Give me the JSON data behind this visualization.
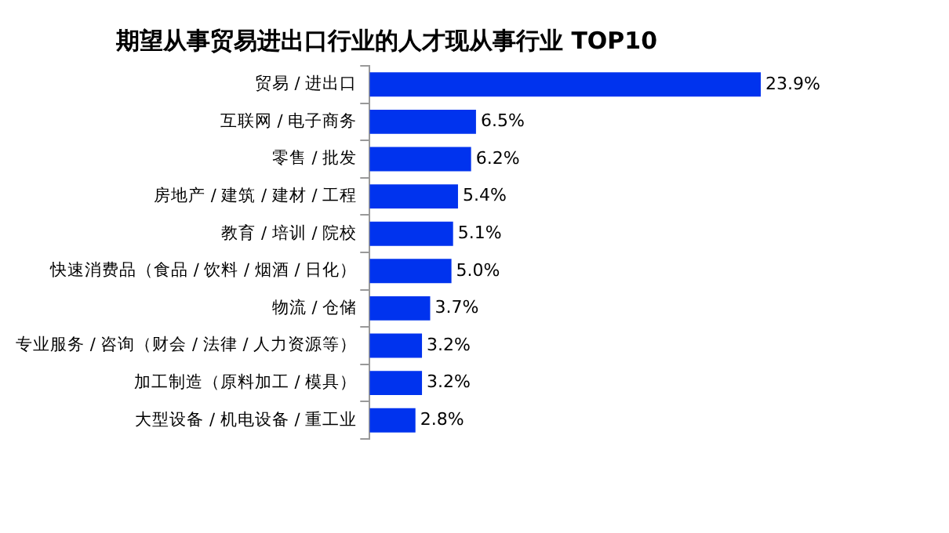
{
  "chart_data": {
    "type": "bar",
    "orientation": "horizontal",
    "title": "期望从事贸易进出口行业的人才现从事行业 TOP10",
    "categories": [
      "贸易 / 进出口",
      "互联网 / 电子商务",
      "零售 / 批发",
      "房地产 / 建筑 / 建材 / 工程",
      "教育 / 培训 / 院校",
      "快速消费品（食品 / 饮料 / 烟酒 / 日化）",
      "物流 / 仓储",
      "专业服务 / 咨询（财会 / 法律 / 人力资源等）",
      "加工制造（原料加工 / 模具）",
      "大型设备 / 机电设备 / 重工业"
    ],
    "values": [
      23.9,
      6.5,
      6.2,
      5.4,
      5.1,
      5.0,
      3.7,
      3.2,
      3.2,
      2.8
    ],
    "value_labels": [
      "23.9%",
      "6.5%",
      "6.2%",
      "5.4%",
      "5.1%",
      "5.0%",
      "3.7%",
      "3.2%",
      "3.2%",
      "2.8%"
    ],
    "color": "#0033ee"
  }
}
